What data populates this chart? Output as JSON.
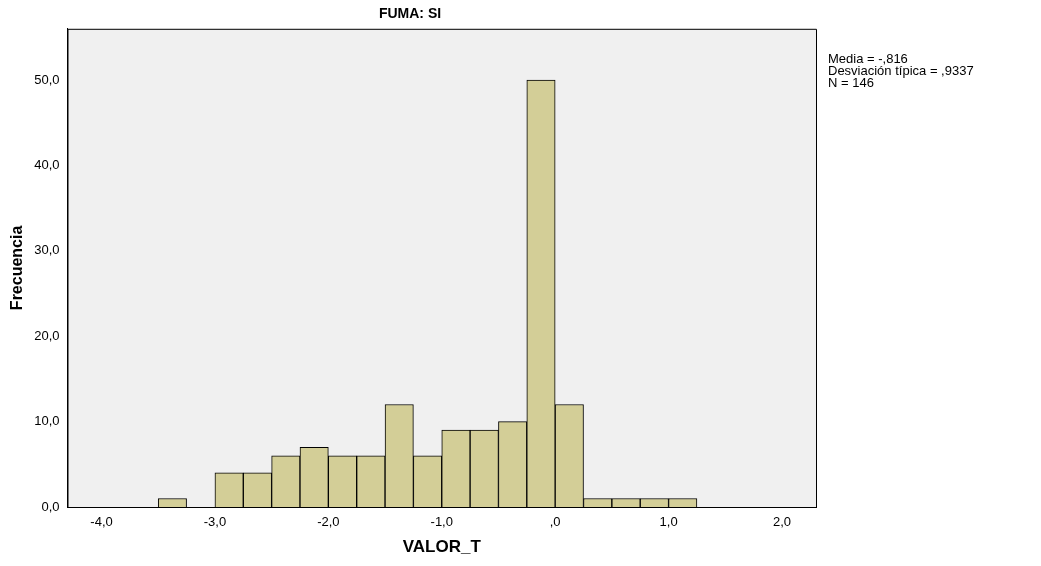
{
  "chart_data": {
    "type": "histogram",
    "title": "FUMA: SI",
    "xlabel": "VALOR_T",
    "ylabel": "Frecuencia",
    "bins": [
      -3.5,
      -3.25,
      -3.0,
      -2.75,
      -2.5,
      -2.25,
      -2.0,
      -1.75,
      -1.5,
      -1.25,
      -1.0,
      -0.75,
      -0.5,
      -0.25,
      0.0,
      0.25,
      0.5,
      0.75,
      1.0,
      1.25
    ],
    "values": [
      1,
      0,
      4,
      4,
      6,
      7,
      6,
      6,
      12,
      6,
      9,
      9,
      10,
      50,
      12,
      1,
      1,
      1,
      1
    ],
    "color": "#d3ce97",
    "xlim": [
      -4.3,
      2.3
    ],
    "xticks": [
      {
        "value": -4,
        "label": "-4,0"
      },
      {
        "value": -3,
        "label": "-3,0"
      },
      {
        "value": -2,
        "label": "-2,0"
      },
      {
        "value": -1,
        "label": "-1,0"
      },
      {
        "value": 0,
        "label": ",0"
      },
      {
        "value": 1,
        "label": "1,0"
      },
      {
        "value": 2,
        "label": "2,0"
      }
    ],
    "ylim": [
      0,
      56
    ],
    "yticks": [
      {
        "value": 0,
        "label": "0,0"
      },
      {
        "value": 10,
        "label": "10,0"
      },
      {
        "value": 20,
        "label": "20,0"
      },
      {
        "value": 30,
        "label": "30,0"
      },
      {
        "value": 40,
        "label": "40,0"
      },
      {
        "value": 50,
        "label": "50,0"
      }
    ],
    "annotations": [
      "Media = -,816",
      "Desviación típica = ,9337",
      "N = 146"
    ],
    "grid": false,
    "legend": false
  }
}
